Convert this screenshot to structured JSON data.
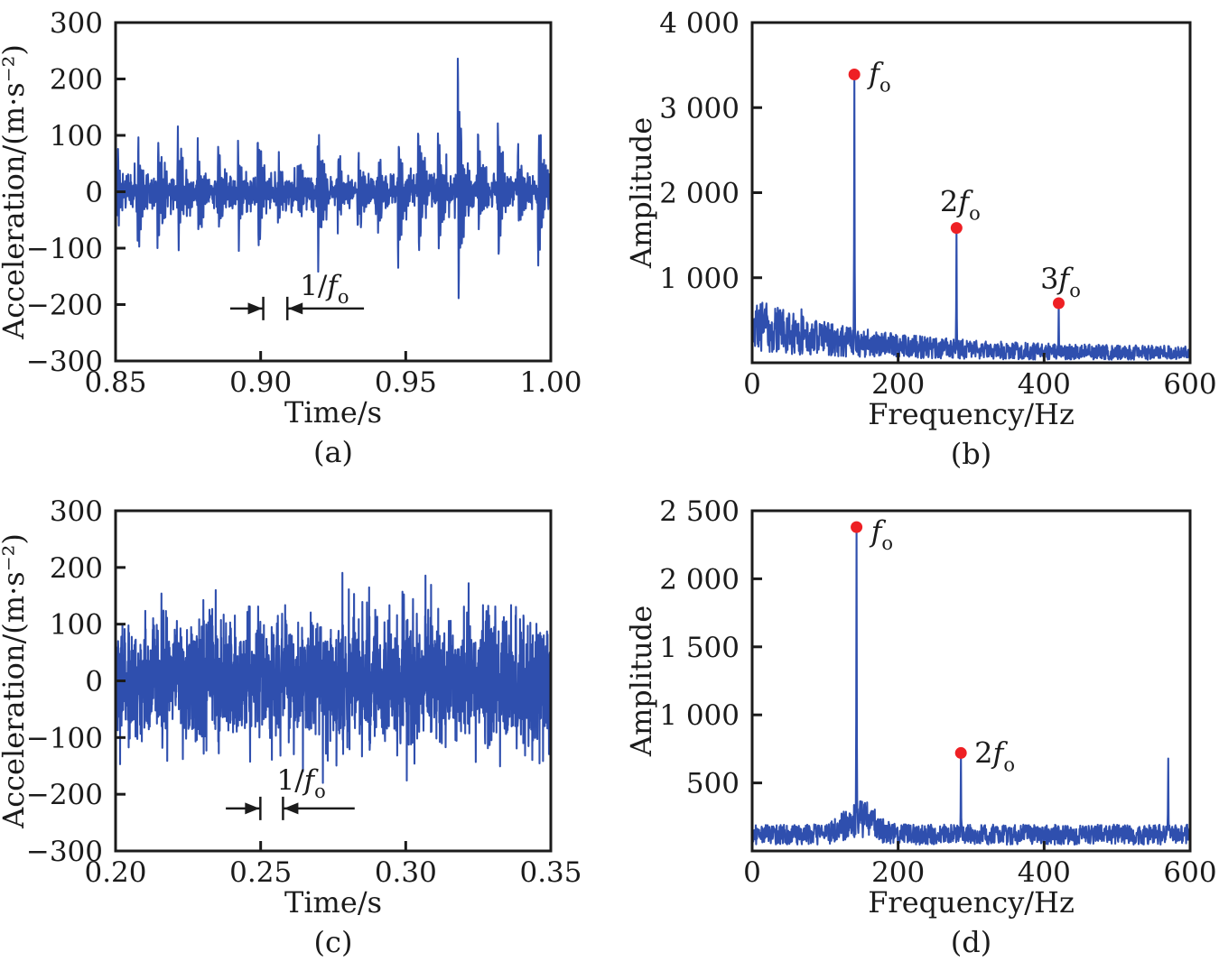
{
  "figure": {
    "description": "Four-panel vibration analysis figure: time-domain acceleration signals (a, c) and corresponding frequency spectra (b, d) with bearing fault frequency harmonics marked",
    "colors": {
      "line": "#2f4fae",
      "marker": "#ee2024",
      "axis": "#1b1b1b",
      "background": "#ffffff"
    }
  },
  "chart_data": [
    {
      "id": "a",
      "type": "line",
      "panel_label": "(a)",
      "xlabel": "Time/s",
      "ylabel": "Acceleration/(m·s⁻²)",
      "xlim": [
        0.85,
        1.0
      ],
      "ylim": [
        -300,
        300
      ],
      "grid": false,
      "xticks": [
        {
          "v": 0.85,
          "label": "0.85"
        },
        {
          "v": 0.9,
          "label": "0.90"
        },
        {
          "v": 0.95,
          "label": "0.95"
        },
        {
          "v": 1.0,
          "label": "1.00"
        }
      ],
      "yticks": [
        {
          "v": 300,
          "label": "300"
        },
        {
          "v": 200,
          "label": "200"
        },
        {
          "v": 100,
          "label": "100"
        },
        {
          "v": 0,
          "label": "0"
        },
        {
          "v": -100,
          "label": "−100"
        },
        {
          "v": -200,
          "label": "−200"
        },
        {
          "v": -300,
          "label": "−300"
        }
      ],
      "signal": {
        "kind": "impulse-train",
        "impulse_freq_hz": 145,
        "impulse_period_s": 0.0069,
        "carrier_hz": 1750,
        "decay_s": 0.0016,
        "impulse_amp_range": [
          65,
          160
        ],
        "max_peak": 228,
        "max_peak_time_s": 0.9655,
        "noise_sigma": 15,
        "samples": 1600,
        "seed": 101
      },
      "annotation": {
        "prefix": "1/",
        "sym": "f",
        "sub": "o",
        "line_y": -207,
        "x_start": 0.8895,
        "x_bar1": 0.9009,
        "x_bar2": 0.9092,
        "x_end": 0.9356,
        "label_x": 0.922,
        "label_y": -183
      }
    },
    {
      "id": "b",
      "type": "line",
      "panel_label": "(b)",
      "xlabel": "Frequency/Hz",
      "ylabel": "Amplitude",
      "xlim": [
        0,
        600
      ],
      "ylim": [
        0,
        4000
      ],
      "grid": false,
      "xticks": [
        {
          "v": 0,
          "label": "0"
        },
        {
          "v": 200,
          "label": "200"
        },
        {
          "v": 400,
          "label": "400"
        },
        {
          "v": 600,
          "label": "600"
        }
      ],
      "yticks": [
        {
          "v": 1000,
          "label": "1 000"
        },
        {
          "v": 2000,
          "label": "2 000"
        },
        {
          "v": 3000,
          "label": "3 000"
        },
        {
          "v": 4000,
          "label": "4 000"
        }
      ],
      "spectrum": {
        "floor_base": 140,
        "floor_exp_amp": 430,
        "floor_exp_tau_hz": 150,
        "jitter": [
          0.22,
          1.35
        ],
        "spike_prob": 0.035,
        "spike_gain": 1.28,
        "spike_below_hz": 180,
        "floor_cap": 1030,
        "samples": 1200,
        "seed": 202
      },
      "peaks": [
        {
          "freq_hz": 140,
          "amplitude": 3390,
          "marker": true,
          "coef": "",
          "sym": "f",
          "sub": "o",
          "anchor": "start",
          "label_dx": 16,
          "label_dy": 10
        },
        {
          "freq_hz": 280,
          "amplitude": 1585,
          "marker": true,
          "coef": "2",
          "sym": "f",
          "sub": "o",
          "anchor": "middle",
          "label_dx": 4,
          "label_dy": -18
        },
        {
          "freq_hz": 420,
          "amplitude": 700,
          "marker": true,
          "coef": "3",
          "sym": "f",
          "sub": "o",
          "anchor": "middle",
          "label_dx": 2,
          "label_dy": -16
        }
      ]
    },
    {
      "id": "c",
      "type": "line",
      "panel_label": "(c)",
      "xlabel": "Time/s",
      "ylabel": "Acceleration/(m·s⁻²)",
      "xlim": [
        0.2,
        0.35
      ],
      "ylim": [
        -300,
        300
      ],
      "grid": false,
      "xticks": [
        {
          "v": 0.2,
          "label": "0.20"
        },
        {
          "v": 0.25,
          "label": "0.25"
        },
        {
          "v": 0.3,
          "label": "0.30"
        },
        {
          "v": 0.35,
          "label": "0.35"
        }
      ],
      "yticks": [
        {
          "v": 300,
          "label": "300"
        },
        {
          "v": 200,
          "label": "200"
        },
        {
          "v": 100,
          "label": "100"
        },
        {
          "v": 0,
          "label": "0"
        },
        {
          "v": -100,
          "label": "−100"
        },
        {
          "v": -200,
          "label": "−200"
        },
        {
          "v": -300,
          "label": "−300"
        }
      ],
      "signal": {
        "kind": "broadband-noise",
        "noise_sigma": 52,
        "spike_prob": 0.02,
        "spike_gain": 1.9,
        "max_abs": 195,
        "samples": 2400,
        "seed": 303
      },
      "annotation": {
        "prefix": "1/",
        "sym": "f",
        "sub": "o",
        "line_y": -225,
        "x_start": 0.238,
        "x_bar1": 0.2499,
        "x_bar2": 0.2577,
        "x_end": 0.2824,
        "label_x": 0.264,
        "label_y": -192
      }
    },
    {
      "id": "d",
      "type": "line",
      "panel_label": "(d)",
      "xlabel": "Frequency/Hz",
      "ylabel": "Amplitude",
      "xlim": [
        0,
        600
      ],
      "ylim": [
        0,
        2500
      ],
      "grid": false,
      "xticks": [
        {
          "v": 0,
          "label": "0"
        },
        {
          "v": 200,
          "label": "200"
        },
        {
          "v": 400,
          "label": "400"
        },
        {
          "v": 600,
          "label": "600"
        }
      ],
      "yticks": [
        {
          "v": 500,
          "label": "500"
        },
        {
          "v": 1000,
          "label": "1 000"
        },
        {
          "v": 1500,
          "label": "1 500"
        },
        {
          "v": 2000,
          "label": "2 000"
        },
        {
          "v": 2500,
          "label": "2 500"
        }
      ],
      "spectrum": {
        "floor_base": 155,
        "floor_exp_amp": 0,
        "floor_exp_tau_hz": 1,
        "shoulder_center_hz": 148,
        "shoulder_amp": 150,
        "shoulder_sigma_hz": 20,
        "jitter": [
          0.3,
          1.25
        ],
        "spike_prob": 0.0,
        "spike_gain": 1.0,
        "spike_below_hz": 0,
        "floor_cap": 500,
        "samples": 1200,
        "seed": 404
      },
      "peaks": [
        {
          "freq_hz": 143,
          "amplitude": 2380,
          "marker": true,
          "coef": "",
          "sym": "f",
          "sub": "o",
          "anchor": "start",
          "label_dx": 16,
          "label_dy": 16
        },
        {
          "freq_hz": 286,
          "amplitude": 720,
          "marker": true,
          "coef": "2",
          "sym": "f",
          "sub": "o",
          "anchor": "start",
          "label_dx": 15,
          "label_dy": 11
        },
        {
          "freq_hz": 570,
          "amplitude": 680,
          "marker": false
        }
      ]
    }
  ]
}
